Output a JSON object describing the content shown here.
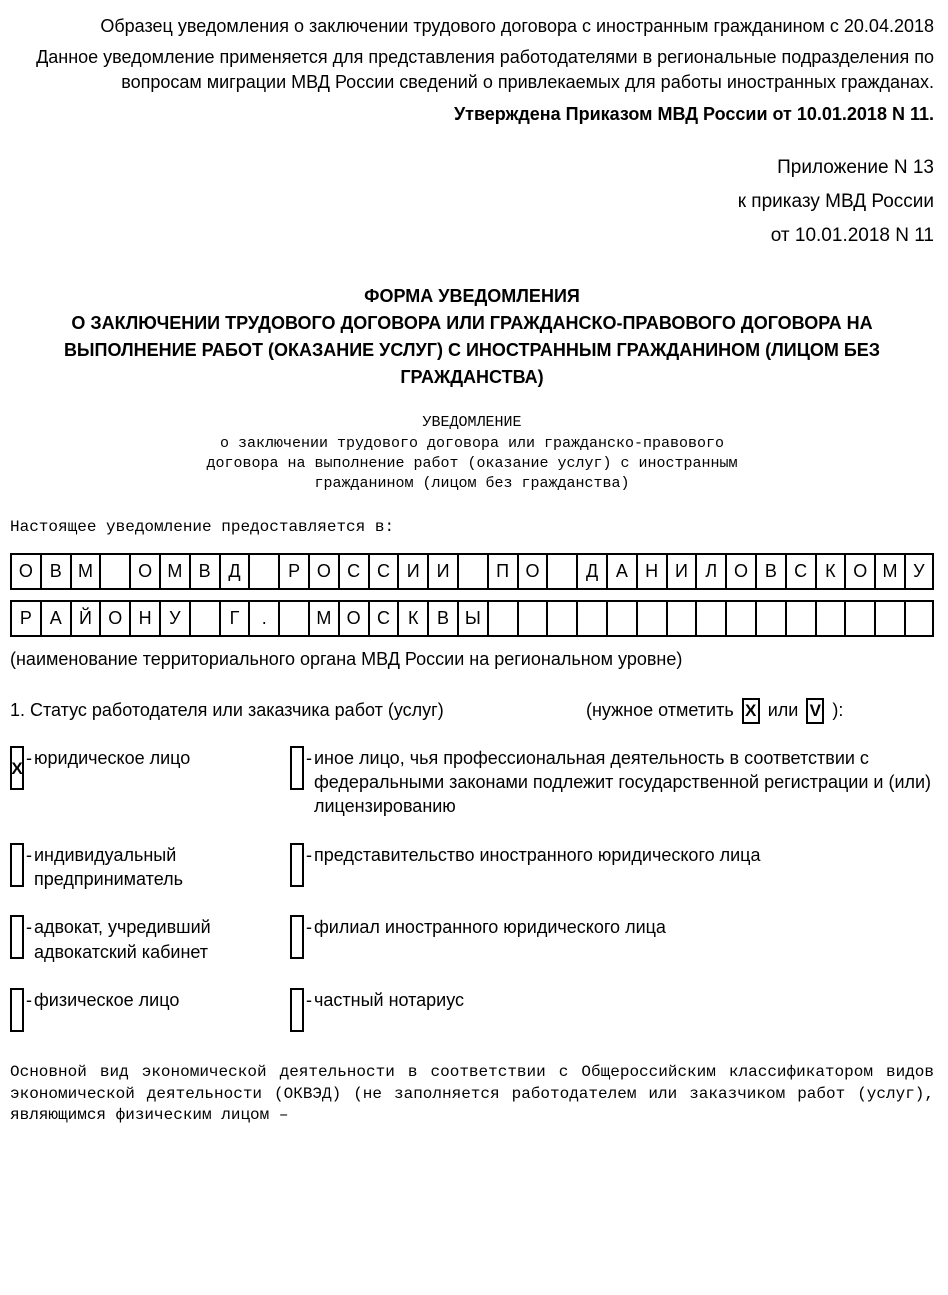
{
  "header": {
    "line1": "Образец уведомления о заключении трудового договора с иностранным гражданином с 20.04.2018",
    "line2": "Данное уведомление применяется для представления работодателями в региональные подразделения по вопросам миграции МВД России сведений о привлекаемых для работы иностранных гражданах.",
    "approved": "Утверждена Приказом МВД России от 10.01.2018 N 11."
  },
  "appendix": {
    "l1": "Приложение N 13",
    "l2": "к приказу МВД России",
    "l3": "от 10.01.2018 N 11"
  },
  "formTitle": {
    "l1": "ФОРМА УВЕДОМЛЕНИЯ",
    "l2": "О ЗАКЛЮЧЕНИИ ТРУДОВОГО ДОГОВОРА ИЛИ ГРАЖДАНСКО-ПРАВОВОГО ДОГОВОРА НА ВЫПОЛНЕНИЕ РАБОТ (ОКАЗАНИЕ УСЛУГ) С ИНОСТРАННЫМ ГРАЖДАНИНОМ (ЛИЦОМ БЕЗ ГРАЖДАНСТВА)"
  },
  "subTitle": {
    "l1": "УВЕДОМЛЕНИЕ",
    "l2": "о заключении трудового договора или гражданско-правового",
    "l3": "договора на выполнение работ (оказание услуг) с иностранным",
    "l4": "гражданином (лицом без гражданства)"
  },
  "intro": "Настоящее уведомление предоставляется в:",
  "grid": {
    "row1": [
      "О",
      "В",
      "М",
      "",
      "О",
      "М",
      "В",
      "Д",
      "",
      "Р",
      "О",
      "С",
      "С",
      "И",
      "И",
      "",
      "П",
      "О",
      "",
      "Д",
      "А",
      "Н",
      "И",
      "Л",
      "О",
      "В",
      "С",
      "К",
      "О",
      "М",
      "У"
    ],
    "row2": [
      "Р",
      "А",
      "Й",
      "О",
      "Н",
      "У",
      "",
      "Г",
      ".",
      "",
      "М",
      "О",
      "С",
      "К",
      "В",
      "Ы",
      "",
      "",
      "",
      "",
      "",
      "",
      "",
      "",
      "",
      "",
      "",
      "",
      "",
      "",
      ""
    ]
  },
  "gridCaption": "(наименование территориального органа МВД России на региональном уровне)",
  "section1": {
    "label": "1. Статус работодателя или заказчика работ (услуг)",
    "hint": "(нужное отметить",
    "or": "или",
    "close": "):",
    "markX": "X",
    "markV": "V"
  },
  "statuses": {
    "left": [
      {
        "mark": "X",
        "text": "юридическое лицо"
      },
      {
        "mark": "",
        "text": "индивидуальный предприниматель"
      },
      {
        "mark": "",
        "text": "адвокат, учредивший адвокатский кабинет"
      },
      {
        "mark": "",
        "text": "физическое лицо"
      }
    ],
    "right": [
      {
        "mark": "",
        "text": "иное лицо, чья профессиональная деятельность в соответствии с федеральными законами подлежит государственной регистрации и (или) лицензированию"
      },
      {
        "mark": "",
        "text": "представительство иностранного юридического лица"
      },
      {
        "mark": "",
        "text": "филиал иностранного юридического лица"
      },
      {
        "mark": "",
        "text": "частный нотариус"
      }
    ]
  },
  "footer": "Основной  вид  экономической  деятельности  в соответствии с Общероссийским классификатором  видов  экономической  деятельности (ОКВЭД) (не заполняется работодателем  или  заказчиком работ (услуг), являющимся физическим лицом –"
}
